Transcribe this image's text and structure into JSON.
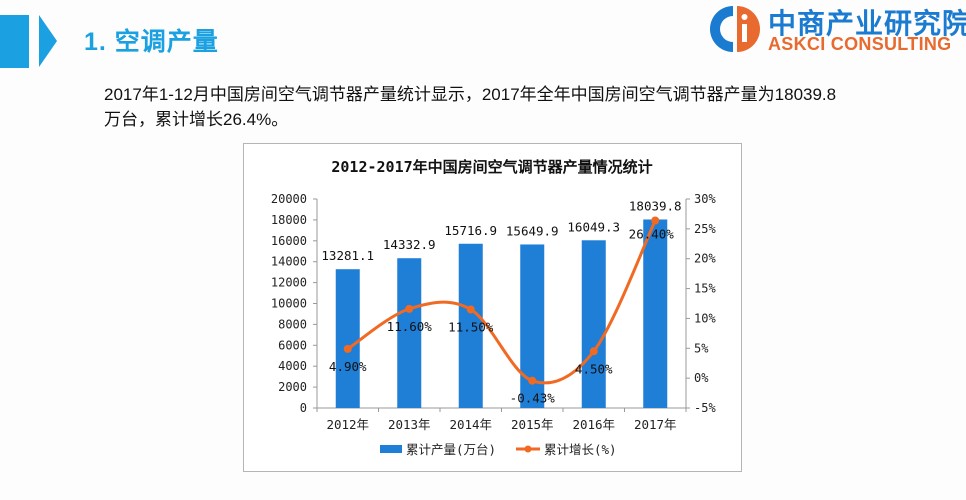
{
  "header": {
    "section_title": "1. 空调产量",
    "logo": {
      "cn": "中商产业研究院",
      "en": "ASKCI CONSULTING"
    }
  },
  "description": "2017年1-12月中国房间空气调节器产量统计显示，2017年全年中国房间空气调节器产量为18039.8万台，累计增长26.4%。",
  "colors": {
    "accent": "#1ba1e2",
    "bar": "#1f7fd6",
    "line": "#f06a24",
    "logo_blue": "#1a7bd0",
    "logo_orange": "#e86a2e"
  },
  "chart_data": {
    "type": "bar+line",
    "title": "2012-2017年中国房间空气调节器产量情况统计",
    "categories": [
      "2012年",
      "2013年",
      "2014年",
      "2015年",
      "2016年",
      "2017年"
    ],
    "series": [
      {
        "name": "累计产量(万台)",
        "type": "bar",
        "axis": "left",
        "values": [
          13281.1,
          14332.9,
          15716.9,
          15649.9,
          16049.3,
          18039.8
        ],
        "labels": [
          "13281.1",
          "14332.9",
          "15716.9",
          "15649.9",
          "16049.3",
          "18039.8"
        ]
      },
      {
        "name": "累计增长(%)",
        "type": "line",
        "axis": "right",
        "values": [
          4.9,
          11.6,
          11.5,
          -0.43,
          4.5,
          26.4
        ],
        "labels": [
          "4.90%",
          "11.60%",
          "11.50%",
          "-0.43%",
          "4.50%",
          "26.40%"
        ]
      }
    ],
    "left_axis": {
      "ticks": [
        "0",
        "2000",
        "4000",
        "6000",
        "8000",
        "10000",
        "12000",
        "14000",
        "16000",
        "18000",
        "20000"
      ],
      "ylim": [
        0,
        20000
      ]
    },
    "right_axis": {
      "ticks": [
        "-5%",
        "0%",
        "5%",
        "10%",
        "15%",
        "20%",
        "25%",
        "30%"
      ],
      "ylim": [
        -5,
        30
      ]
    },
    "legend": {
      "position": "bottom",
      "entries": [
        "累计产量(万台)",
        "累计增长(%)"
      ]
    },
    "grid": false
  }
}
